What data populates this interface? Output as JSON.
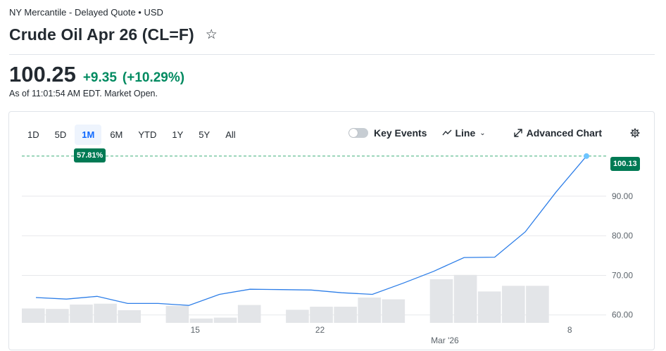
{
  "header": {
    "exchange": "NY Mercantile - Delayed Quote • USD",
    "title": "Crude Oil Apr 26 (CL=F)",
    "price": "100.25",
    "change": "+9.35",
    "change_percent": "(+10.29%)",
    "as_of": "As of 11:01:54 AM EDT. Market Open.",
    "positive_color": "#008a60"
  },
  "toolbar": {
    "ranges": [
      "1D",
      "5D",
      "1M",
      "6M",
      "YTD",
      "1Y",
      "5Y",
      "All"
    ],
    "active_range": "1M",
    "key_events_label": "Key Events",
    "key_events_on": false,
    "chart_type_label": "Line",
    "advanced_chart_label": "Advanced Chart"
  },
  "chart_badges": {
    "range_change": "57.81%",
    "last_price": "100.13"
  },
  "chart_data": {
    "type": "line",
    "x_ticks": [
      {
        "label": "15",
        "t": 7
      },
      {
        "label": "22",
        "t": 12
      },
      {
        "label": "Mar '26",
        "t": 17
      },
      {
        "label": "8",
        "t": 22
      }
    ],
    "y_ticks": [
      "90.00",
      "80.00",
      "70.00",
      "60.00"
    ],
    "ylim": [
      58,
      101
    ],
    "baseline_price": 100.13,
    "series": [
      {
        "price": [
          64.4,
          64.0,
          64.7,
          62.9,
          62.9,
          62.4,
          65.2,
          66.5,
          66.4,
          66.3,
          65.6,
          65.2,
          68.0,
          71.0,
          74.5,
          74.6,
          81.0,
          91.0,
          100.13
        ]
      }
    ],
    "volume_bars": [
      {
        "slot": 0,
        "v": 0.33
      },
      {
        "slot": 1,
        "v": 0.32
      },
      {
        "slot": 2,
        "v": 0.42
      },
      {
        "slot": 3,
        "v": 0.44
      },
      {
        "slot": 4,
        "v": 0.29
      },
      {
        "slot": 6,
        "v": 0.39
      },
      {
        "slot": 7,
        "v": 0.1
      },
      {
        "slot": 8,
        "v": 0.12
      },
      {
        "slot": 9,
        "v": 0.41
      },
      {
        "slot": 11,
        "v": 0.3
      },
      {
        "slot": 12,
        "v": 0.37
      },
      {
        "slot": 13,
        "v": 0.37
      },
      {
        "slot": 14,
        "v": 0.58
      },
      {
        "slot": 15,
        "v": 0.54
      },
      {
        "slot": 17,
        "v": 1.0
      },
      {
        "slot": 18,
        "v": 1.1
      },
      {
        "slot": 19,
        "v": 0.72
      },
      {
        "slot": 20,
        "v": 0.85
      },
      {
        "slot": 21,
        "v": 0.85
      }
    ],
    "line_color": "#2d7ee8",
    "volume_color": "#e3e5e8",
    "grid": true
  }
}
